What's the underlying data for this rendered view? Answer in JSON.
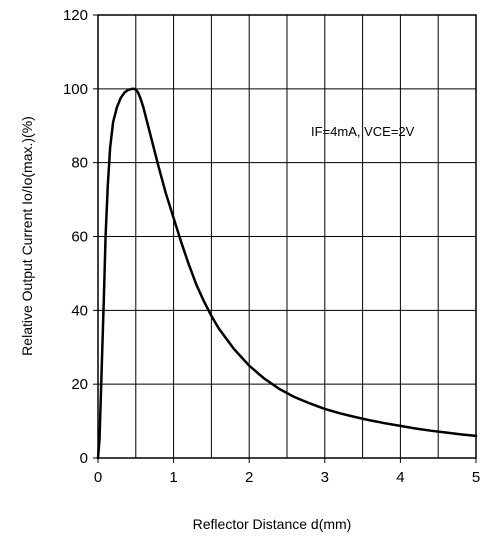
{
  "chart_data": {
    "type": "line",
    "title": "",
    "xlabel": "Reflector Distance d(mm)",
    "ylabel": "Relative Output Current Io/Io(max.)(%)",
    "xlim": [
      0,
      5
    ],
    "ylim": [
      0,
      120
    ],
    "x_ticks": [
      0,
      1,
      2,
      3,
      4,
      5
    ],
    "y_ticks": [
      0,
      20,
      40,
      60,
      80,
      100,
      120
    ],
    "x_grid_step": 0.5,
    "y_grid_step": 20,
    "grid": true,
    "annotation": "IF=4mA, VCE=2V",
    "series": [
      {
        "name": "",
        "color": "#000000",
        "x": [
          0,
          0.02,
          0.05,
          0.08,
          0.1,
          0.13,
          0.16,
          0.2,
          0.25,
          0.3,
          0.35,
          0.4,
          0.45,
          0.48,
          0.5,
          0.53,
          0.56,
          0.6,
          0.65,
          0.7,
          0.8,
          0.9,
          1.0,
          1.1,
          1.2,
          1.3,
          1.4,
          1.5,
          1.6,
          1.8,
          2.0,
          2.2,
          2.4,
          2.6,
          2.8,
          3.0,
          3.2,
          3.4,
          3.6,
          3.8,
          4.0,
          4.2,
          4.4,
          4.6,
          4.8,
          5.0
        ],
        "y": [
          0,
          5,
          25,
          45,
          60,
          74,
          84,
          91,
          95,
          97.5,
          99,
          99.7,
          100,
          100,
          99.8,
          99,
          97.5,
          95,
          91,
          87,
          79,
          71.5,
          65,
          58.5,
          52.5,
          47,
          42.5,
          38.5,
          35,
          29.5,
          25,
          21.5,
          18.7,
          16.5,
          14.8,
          13.3,
          12.1,
          11.1,
          10.2,
          9.4,
          8.7,
          8.0,
          7.4,
          6.9,
          6.4,
          6.0
        ]
      }
    ]
  }
}
